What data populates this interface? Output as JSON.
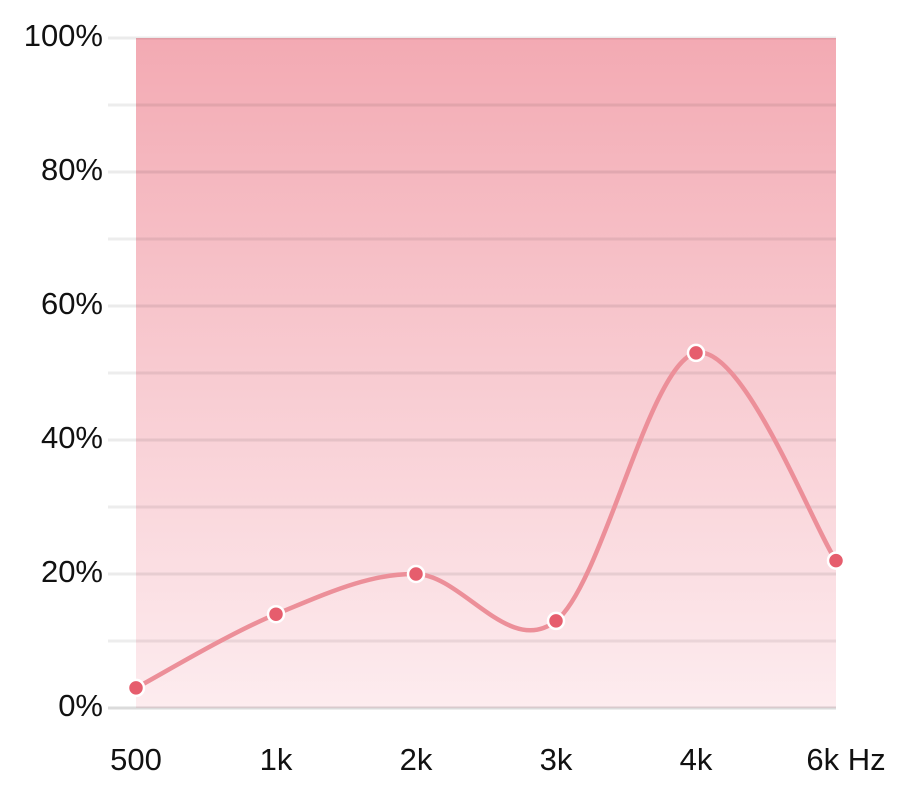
{
  "chart_data": {
    "type": "line",
    "categories": [
      "500",
      "1k",
      "2k",
      "3k",
      "4k",
      "6k Hz"
    ],
    "values": [
      3,
      14,
      20,
      13,
      53,
      22
    ],
    "color": "#ec8f99",
    "marker_color": "#e65d6d",
    "fill_top": "#f3aab3",
    "fill_bottom": "#fdecef",
    "ylim": [
      0,
      100
    ],
    "yticks": [
      {
        "value": 0,
        "label": "0%"
      },
      {
        "value": 20,
        "label": "20%"
      },
      {
        "value": 40,
        "label": "40%"
      },
      {
        "value": 60,
        "label": "60%"
      },
      {
        "value": 80,
        "label": "80%"
      },
      {
        "value": 100,
        "label": "100%"
      }
    ],
    "y_minor_ticks": [
      10,
      30,
      50,
      70,
      90
    ],
    "grid": true
  }
}
